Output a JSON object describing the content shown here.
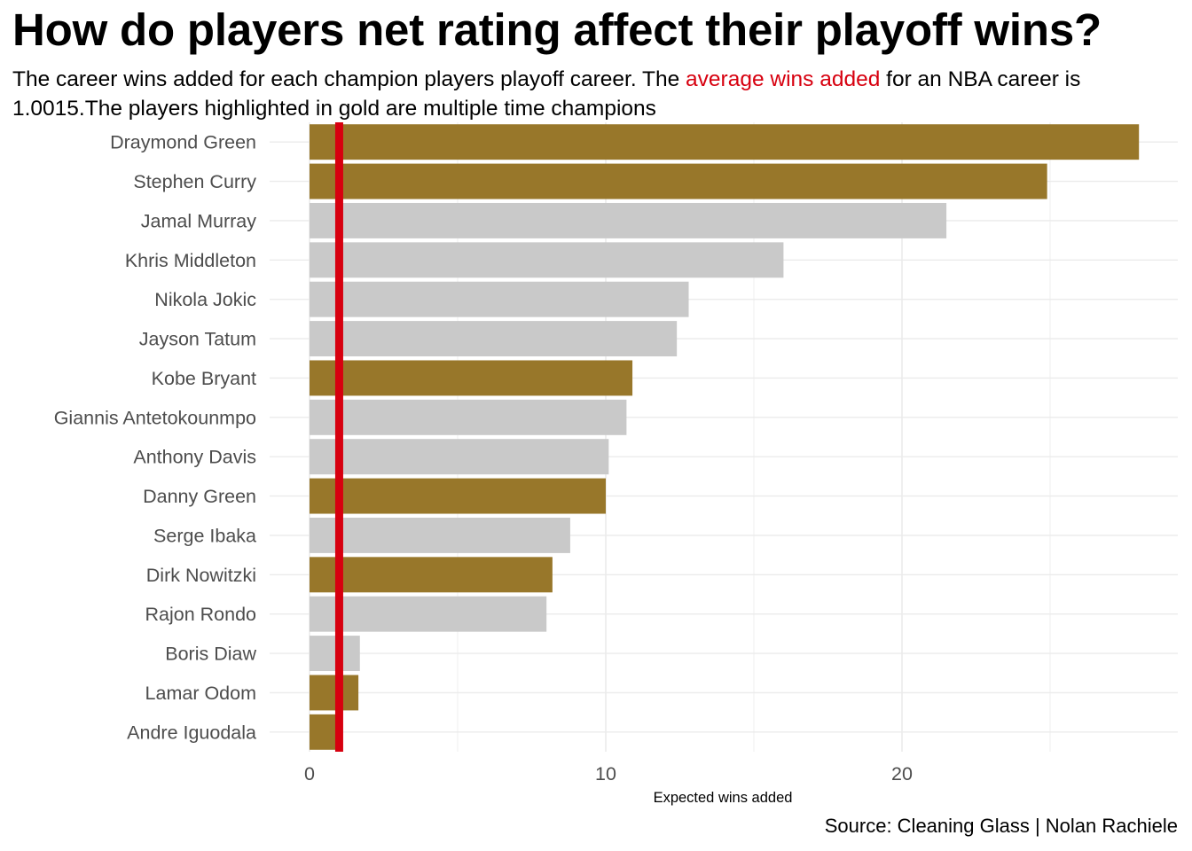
{
  "title": "How do players net rating affect their playoff wins?",
  "subtitle": {
    "part1": "The career wins added for each champion players playoff career. The ",
    "highlight": "average wins added",
    "part2": " for an NBA career is 1.0015.The players highlighted in gold are multiple time champions"
  },
  "caption": "Source: Cleaning Glass | Nolan Rachiele",
  "colors": {
    "multi_champion": "#98772a",
    "single_champion": "#c9c9c9",
    "average_line": "#d7000f",
    "grid": "#ebebeb",
    "axis_text": "#4d4d4d"
  },
  "chart_data": {
    "type": "bar",
    "orientation": "horizontal",
    "xlabel": "Expected wins added",
    "ylabel": "",
    "xlim": [
      0,
      29.5
    ],
    "x_ticks": [
      0,
      10,
      20
    ],
    "grid": true,
    "reference_line": {
      "value": 1.0015,
      "label": "average wins added"
    },
    "categories": [
      "Draymond Green",
      "Stephen Curry",
      "Jamal Murray",
      "Khris Middleton",
      "Nikola Jokic",
      "Jayson Tatum",
      "Kobe Bryant",
      "Giannis Antetokounmpo",
      "Anthony Davis",
      "Danny Green",
      "Serge Ibaka",
      "Dirk Nowitzki",
      "Rajon Rondo",
      "Boris Diaw",
      "Lamar Odom",
      "Andre Iguodala"
    ],
    "values": [
      28.0,
      24.9,
      21.5,
      16.0,
      12.8,
      12.4,
      10.9,
      10.7,
      10.1,
      10.0,
      8.8,
      8.2,
      8.0,
      1.7,
      1.65,
      0.95
    ],
    "multiple_champion": [
      true,
      true,
      false,
      false,
      false,
      false,
      true,
      false,
      false,
      true,
      false,
      true,
      false,
      false,
      true,
      true
    ]
  }
}
